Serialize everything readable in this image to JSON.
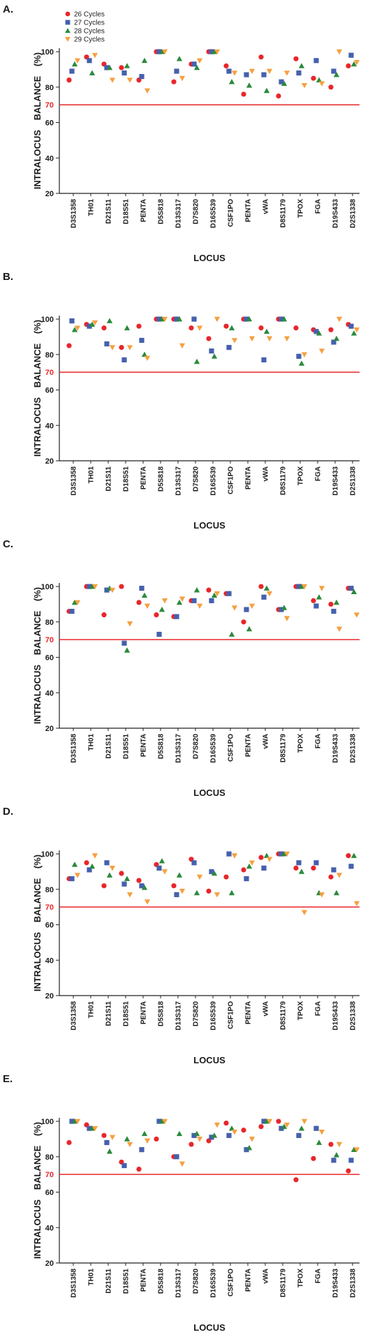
{
  "chart_data": [
    {
      "type": "scatter",
      "panel_label": "A.",
      "categories": [
        "D3S1358",
        "TH01",
        "D21S11",
        "D18S51",
        "PENTA",
        "D5S818",
        "D13S317",
        "D7S820",
        "D16S539",
        "CSF1PO",
        "PENTA",
        "vWA",
        "D8S1179",
        "TPOX",
        "FGA",
        "D19S433",
        "D2S1338"
      ],
      "series": [
        {
          "name": "26 Cycles",
          "color": "#e8262a",
          "marker": "circle",
          "values": [
            84,
            97,
            93,
            91,
            84,
            100,
            83,
            93,
            100,
            92,
            76,
            97,
            75,
            96,
            85,
            80,
            92
          ]
        },
        {
          "name": "27 Cycles",
          "color": "#4560ae",
          "marker": "square",
          "values": [
            89,
            95,
            91,
            88,
            86,
            100,
            89,
            93,
            100,
            89,
            87,
            87,
            83,
            88,
            95,
            89,
            98
          ]
        },
        {
          "name": "28 Cycles",
          "color": "#2a8a3c",
          "marker": "triangle-up",
          "values": [
            93,
            88,
            91,
            92,
            95,
            100,
            96,
            91,
            100,
            83,
            81,
            78,
            82,
            92,
            84,
            87,
            93
          ]
        },
        {
          "name": "29 Cycles",
          "color": "#f5a040",
          "marker": "triangle-down",
          "values": [
            95,
            98,
            84,
            84,
            78,
            100,
            85,
            95,
            100,
            88,
            89,
            89,
            88,
            81,
            82,
            100,
            94
          ]
        }
      ],
      "ylim": [
        20,
        102
      ],
      "yticks": [
        20,
        40,
        60,
        80,
        100
      ],
      "threshold": 70,
      "threshold_color": "#e8262a",
      "y_label": "INTRALOCUS BALANCE (%)",
      "x_label": "LOCUS",
      "legend": "top-left"
    },
    {
      "type": "scatter",
      "panel_label": "B.",
      "categories": [
        "D3S1358",
        "TH01",
        "D21S11",
        "D18S51",
        "PENTA",
        "D5S818",
        "D13S317",
        "D7S820",
        "D16S539",
        "CSF1PO",
        "PENTA",
        "vWA",
        "D8S1179",
        "TPOX",
        "FGA",
        "D19S433",
        "D2S1338"
      ],
      "series": [
        {
          "color": "#e8262a",
          "marker": "circle",
          "values": [
            85,
            97,
            95,
            84,
            96,
            100,
            100,
            95,
            89,
            96,
            100,
            95,
            100,
            95,
            94,
            94,
            97
          ]
        },
        {
          "color": "#4560ae",
          "marker": "square",
          "values": [
            99,
            96,
            86,
            77,
            88,
            100,
            100,
            100,
            82,
            84,
            100,
            77,
            100,
            79,
            93,
            87,
            96
          ]
        },
        {
          "color": "#2a8a3c",
          "marker": "triangle-up",
          "values": [
            94,
            97,
            99,
            95,
            80,
            100,
            100,
            76,
            79,
            95,
            100,
            93,
            100,
            75,
            92,
            89,
            92
          ]
        },
        {
          "color": "#f5a040",
          "marker": "triangle-down",
          "values": [
            95,
            98,
            84,
            84,
            78,
            100,
            85,
            95,
            100,
            88,
            89,
            89,
            89,
            80,
            82,
            100,
            94
          ]
        }
      ],
      "ylim": [
        20,
        102
      ],
      "yticks": [
        20,
        40,
        60,
        80,
        100
      ],
      "threshold": 70,
      "threshold_color": "#e8262a",
      "y_label": "INTRALOCUS BALANCE (%)",
      "x_label": "LOCUS"
    },
    {
      "type": "scatter",
      "panel_label": "C.",
      "categories": [
        "D3S1358",
        "TH01",
        "D21S11",
        "D18S51",
        "PENTA",
        "D5S818",
        "D13S317",
        "D7S820",
        "D16S539",
        "CSF1PO",
        "PENTA",
        "vWA",
        "D8S1179",
        "TPOX",
        "FGA",
        "D19S433",
        "D2S1338"
      ],
      "series": [
        {
          "color": "#e8262a",
          "marker": "circle",
          "values": [
            86,
            100,
            84,
            100,
            91,
            84,
            83,
            92,
            98,
            96,
            80,
            100,
            87,
            100,
            92,
            90,
            99
          ]
        },
        {
          "color": "#4560ae",
          "marker": "square",
          "values": [
            86,
            100,
            98,
            68,
            99,
            73,
            83,
            92,
            92,
            96,
            87,
            94,
            87,
            100,
            89,
            86,
            99
          ]
        },
        {
          "color": "#2a8a3c",
          "marker": "triangle-up",
          "values": [
            91,
            100,
            99,
            64,
            95,
            87,
            91,
            98,
            95,
            73,
            76,
            99,
            88,
            100,
            94,
            91,
            97
          ]
        },
        {
          "color": "#f5a040",
          "marker": "triangle-down",
          "values": [
            91,
            100,
            98,
            79,
            89,
            92,
            93,
            89,
            96,
            88,
            89,
            96,
            82,
            100,
            99,
            76,
            84
          ]
        }
      ],
      "ylim": [
        20,
        102
      ],
      "yticks": [
        20,
        40,
        60,
        80,
        100
      ],
      "threshold": 70,
      "threshold_color": "#e8262a",
      "y_label": "INTRALOCUS BALANCE (%)",
      "x_label": "LOCUS"
    },
    {
      "type": "scatter",
      "panel_label": "D.",
      "categories": [
        "D3S1358",
        "TH01",
        "D21S11",
        "D18S51",
        "PENTA",
        "D5S818",
        "D13S317",
        "D7S820",
        "D16S539",
        "CSF1PO",
        "PENTA",
        "vWA",
        "D8S1179",
        "TPOX",
        "FGA",
        "D19S433",
        "D2S1338"
      ],
      "series": [
        {
          "color": "#e8262a",
          "marker": "circle",
          "values": [
            86,
            95,
            82,
            89,
            85,
            94,
            82,
            97,
            79,
            87,
            91,
            98,
            100,
            92,
            92,
            87,
            99
          ]
        },
        {
          "color": "#4560ae",
          "marker": "square",
          "values": [
            86,
            91,
            95,
            83,
            82,
            92,
            77,
            95,
            90,
            100,
            86,
            92,
            100,
            95,
            95,
            91,
            93
          ]
        },
        {
          "color": "#2a8a3c",
          "marker": "triangle-up",
          "values": [
            94,
            93,
            88,
            86,
            81,
            96,
            88,
            78,
            89,
            78,
            93,
            99,
            100,
            90,
            78,
            78,
            99
          ]
        },
        {
          "color": "#f5a040",
          "marker": "triangle-down",
          "values": [
            88,
            99,
            92,
            77,
            73,
            90,
            79,
            87,
            77,
            99,
            95,
            97,
            100,
            67,
            77,
            88,
            72
          ]
        }
      ],
      "ylim": [
        20,
        102
      ],
      "yticks": [
        20,
        40,
        60,
        80,
        100
      ],
      "threshold": 70,
      "threshold_color": "#e8262a",
      "y_label": "INTRALOCUS BALANCE (%)",
      "x_label": "LOCUS"
    },
    {
      "type": "scatter",
      "panel_label": "E.",
      "categories": [
        "D3S1358",
        "TH01",
        "D21S11",
        "D18S51",
        "PENTA",
        "D5S818",
        "D13S317",
        "D7S820",
        "D16S539",
        "CSF1PO",
        "PENTA",
        "vWA",
        "D8S1179",
        "TPOX",
        "FGA",
        "D19S433",
        "D2S1338"
      ],
      "series": [
        {
          "color": "#e8262a",
          "marker": "circle",
          "values": [
            88,
            98,
            92,
            77,
            73,
            90,
            80,
            87,
            89,
            99,
            95,
            97,
            100,
            67,
            79,
            87,
            72
          ]
        },
        {
          "color": "#4560ae",
          "marker": "square",
          "values": [
            100,
            96,
            88,
            75,
            84,
            100,
            80,
            92,
            91,
            92,
            84,
            100,
            96,
            92,
            96,
            78,
            78
          ]
        },
        {
          "color": "#2a8a3c",
          "marker": "triangle-up",
          "values": [
            100,
            96,
            83,
            90,
            93,
            100,
            93,
            93,
            92,
            96,
            85,
            100,
            97,
            96,
            88,
            81,
            84
          ]
        },
        {
          "color": "#f5a040",
          "marker": "triangle-down",
          "values": [
            100,
            96,
            91,
            87,
            89,
            100,
            76,
            90,
            98,
            94,
            90,
            100,
            98,
            100,
            94,
            87,
            84
          ]
        }
      ],
      "ylim": [
        20,
        102
      ],
      "yticks": [
        20,
        40,
        60,
        80,
        100
      ],
      "threshold": 70,
      "threshold_color": "#e8262a",
      "y_label": "INTRALOCUS BALANCE (%)",
      "x_label": "LOCUS"
    }
  ]
}
